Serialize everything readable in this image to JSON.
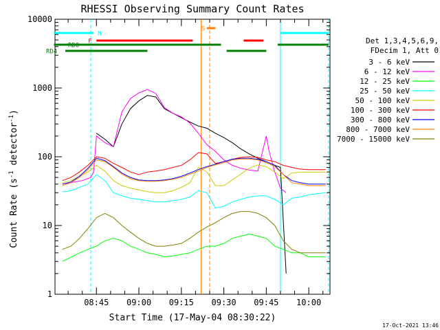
{
  "chart_data": {
    "type": "line",
    "title": "RHESSI Observing Summary Count Rates",
    "xlabel": "Start Time (17-May-04 08:30:22)",
    "ylabel": "Count Rate (s⁻¹ detector⁻¹)",
    "ylabel_main": "Count Rate (s",
    "ylabel_sup1": "-1",
    "ylabel_mid": " detector",
    "ylabel_sup2": "-1",
    "ylabel_end": ")",
    "yscale": "log",
    "ylim": [
      1,
      10000
    ],
    "xlim": [
      "08:30:22",
      "10:07:30"
    ],
    "x_ticks": [
      "08:45",
      "09:00",
      "09:15",
      "09:30",
      "09:45",
      "10:00"
    ],
    "y_ticks": [
      "1",
      "10",
      "100",
      "1000",
      "10000"
    ],
    "legend_header": [
      "Det 1,3,4,5,6,9,",
      "FDecim 1, Att 0"
    ],
    "timestamp": "17-Oct-2021 13:46",
    "series": [
      {
        "name": "3 - 6 keV",
        "color": "#000000",
        "x": [
          "08:33",
          "08:40",
          "08:42",
          "08:44",
          "08:45",
          "08:48",
          "08:51",
          "08:54",
          "08:57",
          "09:00",
          "09:03",
          "09:06",
          "09:09",
          "09:12",
          "09:15",
          "09:18",
          "09:21",
          "09:24",
          "09:27",
          "09:30",
          "09:33",
          "09:36",
          "09:39",
          "09:42",
          "09:45",
          "09:48",
          "09:50",
          "09:52"
        ],
        "y": [
          null,
          null,
          null,
          null,
          220,
          180,
          140,
          300,
          500,
          650,
          780,
          740,
          500,
          430,
          370,
          320,
          280,
          260,
          220,
          190,
          160,
          130,
          110,
          95,
          85,
          75,
          70,
          2
        ]
      },
      {
        "name": "6 - 12 keV",
        "color": "#ff00ff",
        "x": [
          "08:33",
          "08:40",
          "08:43",
          "08:44",
          "08:45",
          "08:48",
          "08:51",
          "08:54",
          "08:57",
          "09:00",
          "09:03",
          "09:06",
          "09:09",
          "09:12",
          "09:15",
          "09:18",
          "09:21",
          "09:24",
          "09:27",
          "09:30",
          "09:33",
          "09:36",
          "09:39",
          "09:42",
          "09:45",
          "09:46",
          "09:48",
          "09:50",
          "09:52"
        ],
        "y": [
          40,
          45,
          50,
          60,
          200,
          160,
          140,
          450,
          700,
          850,
          950,
          830,
          520,
          430,
          380,
          310,
          220,
          150,
          120,
          90,
          75,
          68,
          64,
          62,
          200,
          120,
          60,
          35,
          30
        ]
      },
      {
        "name": "12 - 25 keV",
        "color": "#00ff00",
        "x": [
          "08:33",
          "08:39",
          "08:42",
          "08:45",
          "08:48",
          "08:51",
          "08:54",
          "08:57",
          "09:00",
          "09:03",
          "09:06",
          "09:09",
          "09:12",
          "09:15",
          "09:18",
          "09:21",
          "09:24",
          "09:27",
          "09:30",
          "09:33",
          "09:36",
          "09:39",
          "09:42",
          "09:45",
          "09:48",
          "09:51",
          "09:54",
          "09:57",
          "10:00",
          "10:03",
          "10:06"
        ],
        "y": [
          3,
          4,
          4.5,
          5,
          6,
          6.5,
          6,
          5,
          4.5,
          4,
          3.8,
          3.5,
          3.6,
          3.8,
          4,
          4.5,
          5,
          5,
          5.5,
          6.5,
          7,
          7.5,
          7,
          6.5,
          5,
          4.5,
          4,
          4,
          3.5,
          3.5,
          3.5
        ]
      },
      {
        "name": "25 - 50 keV",
        "color": "#00ffff",
        "x": [
          "08:33",
          "08:36",
          "08:39",
          "08:42",
          "08:45",
          "08:48",
          "08:51",
          "08:54",
          "08:57",
          "09:00",
          "09:03",
          "09:06",
          "09:09",
          "09:12",
          "09:15",
          "09:18",
          "09:21",
          "09:24",
          "09:27",
          "09:30",
          "09:33",
          "09:36",
          "09:39",
          "09:42",
          "09:45",
          "09:48",
          "09:51",
          "09:54",
          "09:57",
          "10:00",
          "10:03",
          "10:06"
        ],
        "y": [
          31,
          32,
          36,
          40,
          55,
          45,
          30,
          27,
          25,
          24,
          23,
          22,
          22,
          23,
          24,
          26,
          32,
          30,
          18,
          19,
          22,
          24,
          26,
          27,
          27,
          24,
          20,
          25,
          26,
          28,
          29,
          30
        ]
      },
      {
        "name": "50 - 100 keV",
        "color": "#cccc00",
        "x": [
          "08:33",
          "08:36",
          "08:39",
          "08:42",
          "08:45",
          "08:48",
          "08:51",
          "08:54",
          "08:57",
          "09:00",
          "09:03",
          "09:06",
          "09:09",
          "09:12",
          "09:15",
          "09:18",
          "09:21",
          "09:24",
          "09:27",
          "09:30",
          "09:33",
          "09:36",
          "09:39",
          "09:42",
          "09:45",
          "09:48",
          "09:51",
          "09:54",
          "09:57",
          "10:00",
          "10:03",
          "10:06"
        ],
        "y": [
          42,
          45,
          52,
          60,
          75,
          62,
          45,
          38,
          35,
          33,
          31,
          30,
          30,
          32,
          36,
          42,
          70,
          60,
          38,
          38,
          46,
          56,
          68,
          76,
          72,
          60,
          48,
          58,
          60,
          60,
          60,
          60
        ]
      },
      {
        "name": "100 - 300 keV",
        "color": "#ff0000",
        "x": [
          "08:33",
          "08:36",
          "08:39",
          "08:42",
          "08:45",
          "08:48",
          "08:51",
          "08:54",
          "08:57",
          "09:00",
          "09:03",
          "09:06",
          "09:09",
          "09:12",
          "09:15",
          "09:18",
          "09:21",
          "09:24",
          "09:27",
          "09:30",
          "09:33",
          "09:36",
          "09:39",
          "09:42",
          "09:45",
          "09:48",
          "09:51",
          "09:54",
          "09:57",
          "10:00",
          "10:03",
          "10:06"
        ],
        "y": [
          45,
          50,
          60,
          75,
          100,
          95,
          80,
          70,
          60,
          55,
          60,
          62,
          65,
          70,
          75,
          90,
          115,
          110,
          80,
          85,
          92,
          98,
          100,
          98,
          90,
          85,
          75,
          70,
          66,
          65,
          65,
          65
        ]
      },
      {
        "name": "300 - 800 keV",
        "color": "#0000ff",
        "x": [
          "08:33",
          "08:36",
          "08:39",
          "08:42",
          "08:45",
          "08:48",
          "08:51",
          "08:54",
          "08:57",
          "09:00",
          "09:03",
          "09:06",
          "09:09",
          "09:12",
          "09:15",
          "09:18",
          "09:21",
          "09:24",
          "09:27",
          "09:30",
          "09:33",
          "09:36",
          "09:39",
          "09:42",
          "09:45",
          "09:48",
          "09:51",
          "09:54",
          "09:57",
          "10:00",
          "10:03",
          "10:06"
        ],
        "y": [
          40,
          43,
          52,
          68,
          95,
          88,
          72,
          58,
          50,
          46,
          45,
          45,
          46,
          48,
          52,
          58,
          65,
          72,
          78,
          85,
          92,
          95,
          95,
          92,
          85,
          75,
          55,
          45,
          42,
          40,
          40,
          40
        ]
      },
      {
        "name": "800 - 7000 keV",
        "color": "#ff8000",
        "x": [
          "08:33",
          "08:36",
          "08:39",
          "08:42",
          "08:45",
          "08:48",
          "08:51",
          "08:54",
          "08:57",
          "09:00",
          "09:03",
          "09:06",
          "09:09",
          "09:12",
          "09:15",
          "09:18",
          "09:21",
          "09:24",
          "09:27",
          "09:30",
          "09:33",
          "09:36",
          "09:39",
          "09:42",
          "09:45",
          "09:48",
          "09:51",
          "09:54",
          "09:57",
          "10:00",
          "10:03",
          "10:06"
        ],
        "y": [
          38,
          42,
          50,
          65,
          90,
          85,
          70,
          56,
          48,
          45,
          44,
          44,
          45,
          47,
          50,
          56,
          62,
          70,
          76,
          82,
          90,
          93,
          93,
          90,
          82,
          72,
          55,
          42,
          40,
          38,
          38,
          38
        ]
      },
      {
        "name": "7000 - 15000 keV",
        "color": "#808000",
        "x": [
          "08:33",
          "08:36",
          "08:39",
          "08:42",
          "08:45",
          "08:48",
          "08:51",
          "08:54",
          "08:57",
          "09:00",
          "09:03",
          "09:06",
          "09:09",
          "09:12",
          "09:15",
          "09:18",
          "09:21",
          "09:24",
          "09:27",
          "09:30",
          "09:33",
          "09:36",
          "09:39",
          "09:42",
          "09:45",
          "09:48",
          "09:51",
          "09:54",
          "09:57",
          "10:00",
          "10:03",
          "10:06"
        ],
        "y": [
          4.5,
          5,
          6.5,
          9,
          13,
          15,
          13,
          10,
          8,
          6.5,
          5.5,
          5,
          5,
          5.2,
          5.5,
          6.5,
          8,
          9.5,
          11,
          13,
          15,
          16,
          16,
          15,
          13,
          10,
          6,
          4.5,
          4,
          4,
          4,
          4
        ]
      }
    ],
    "flag_bars": [
      {
        "label": "N",
        "color": "#00ffff",
        "intervals": [
          [
            "08:30",
            "08:44"
          ],
          [
            "09:50",
            "10:07"
          ]
        ]
      },
      {
        "label": "F",
        "color": "#ff0000",
        "intervals": [
          [
            "08:45",
            "09:19"
          ],
          [
            "09:37",
            "09:44"
          ]
        ]
      },
      {
        "label": "S",
        "color": "#ff8000",
        "intervals": [
          [
            "09:24",
            "09:27"
          ]
        ]
      },
      {
        "label": "RD0",
        "color": "#008000",
        "intervals": [
          [
            "08:30",
            "09:29"
          ],
          [
            "09:49",
            "10:07"
          ]
        ]
      },
      {
        "label": "RD4",
        "color": "#008000",
        "intervals": [
          [
            "08:34",
            "09:03"
          ],
          [
            "09:31",
            "09:45"
          ]
        ]
      }
    ],
    "vertical_lines": [
      {
        "time": "08:43",
        "color": "#00ffff",
        "style": "dashed"
      },
      {
        "time": "09:22",
        "color": "#ff8000",
        "style": "solid"
      },
      {
        "time": "09:25",
        "color": "#ff8000",
        "style": "dashed"
      },
      {
        "time": "09:50",
        "color": "#00ffff",
        "style": "solid"
      },
      {
        "time": "10:07",
        "color": "#00ffff",
        "style": "dashed"
      }
    ]
  }
}
